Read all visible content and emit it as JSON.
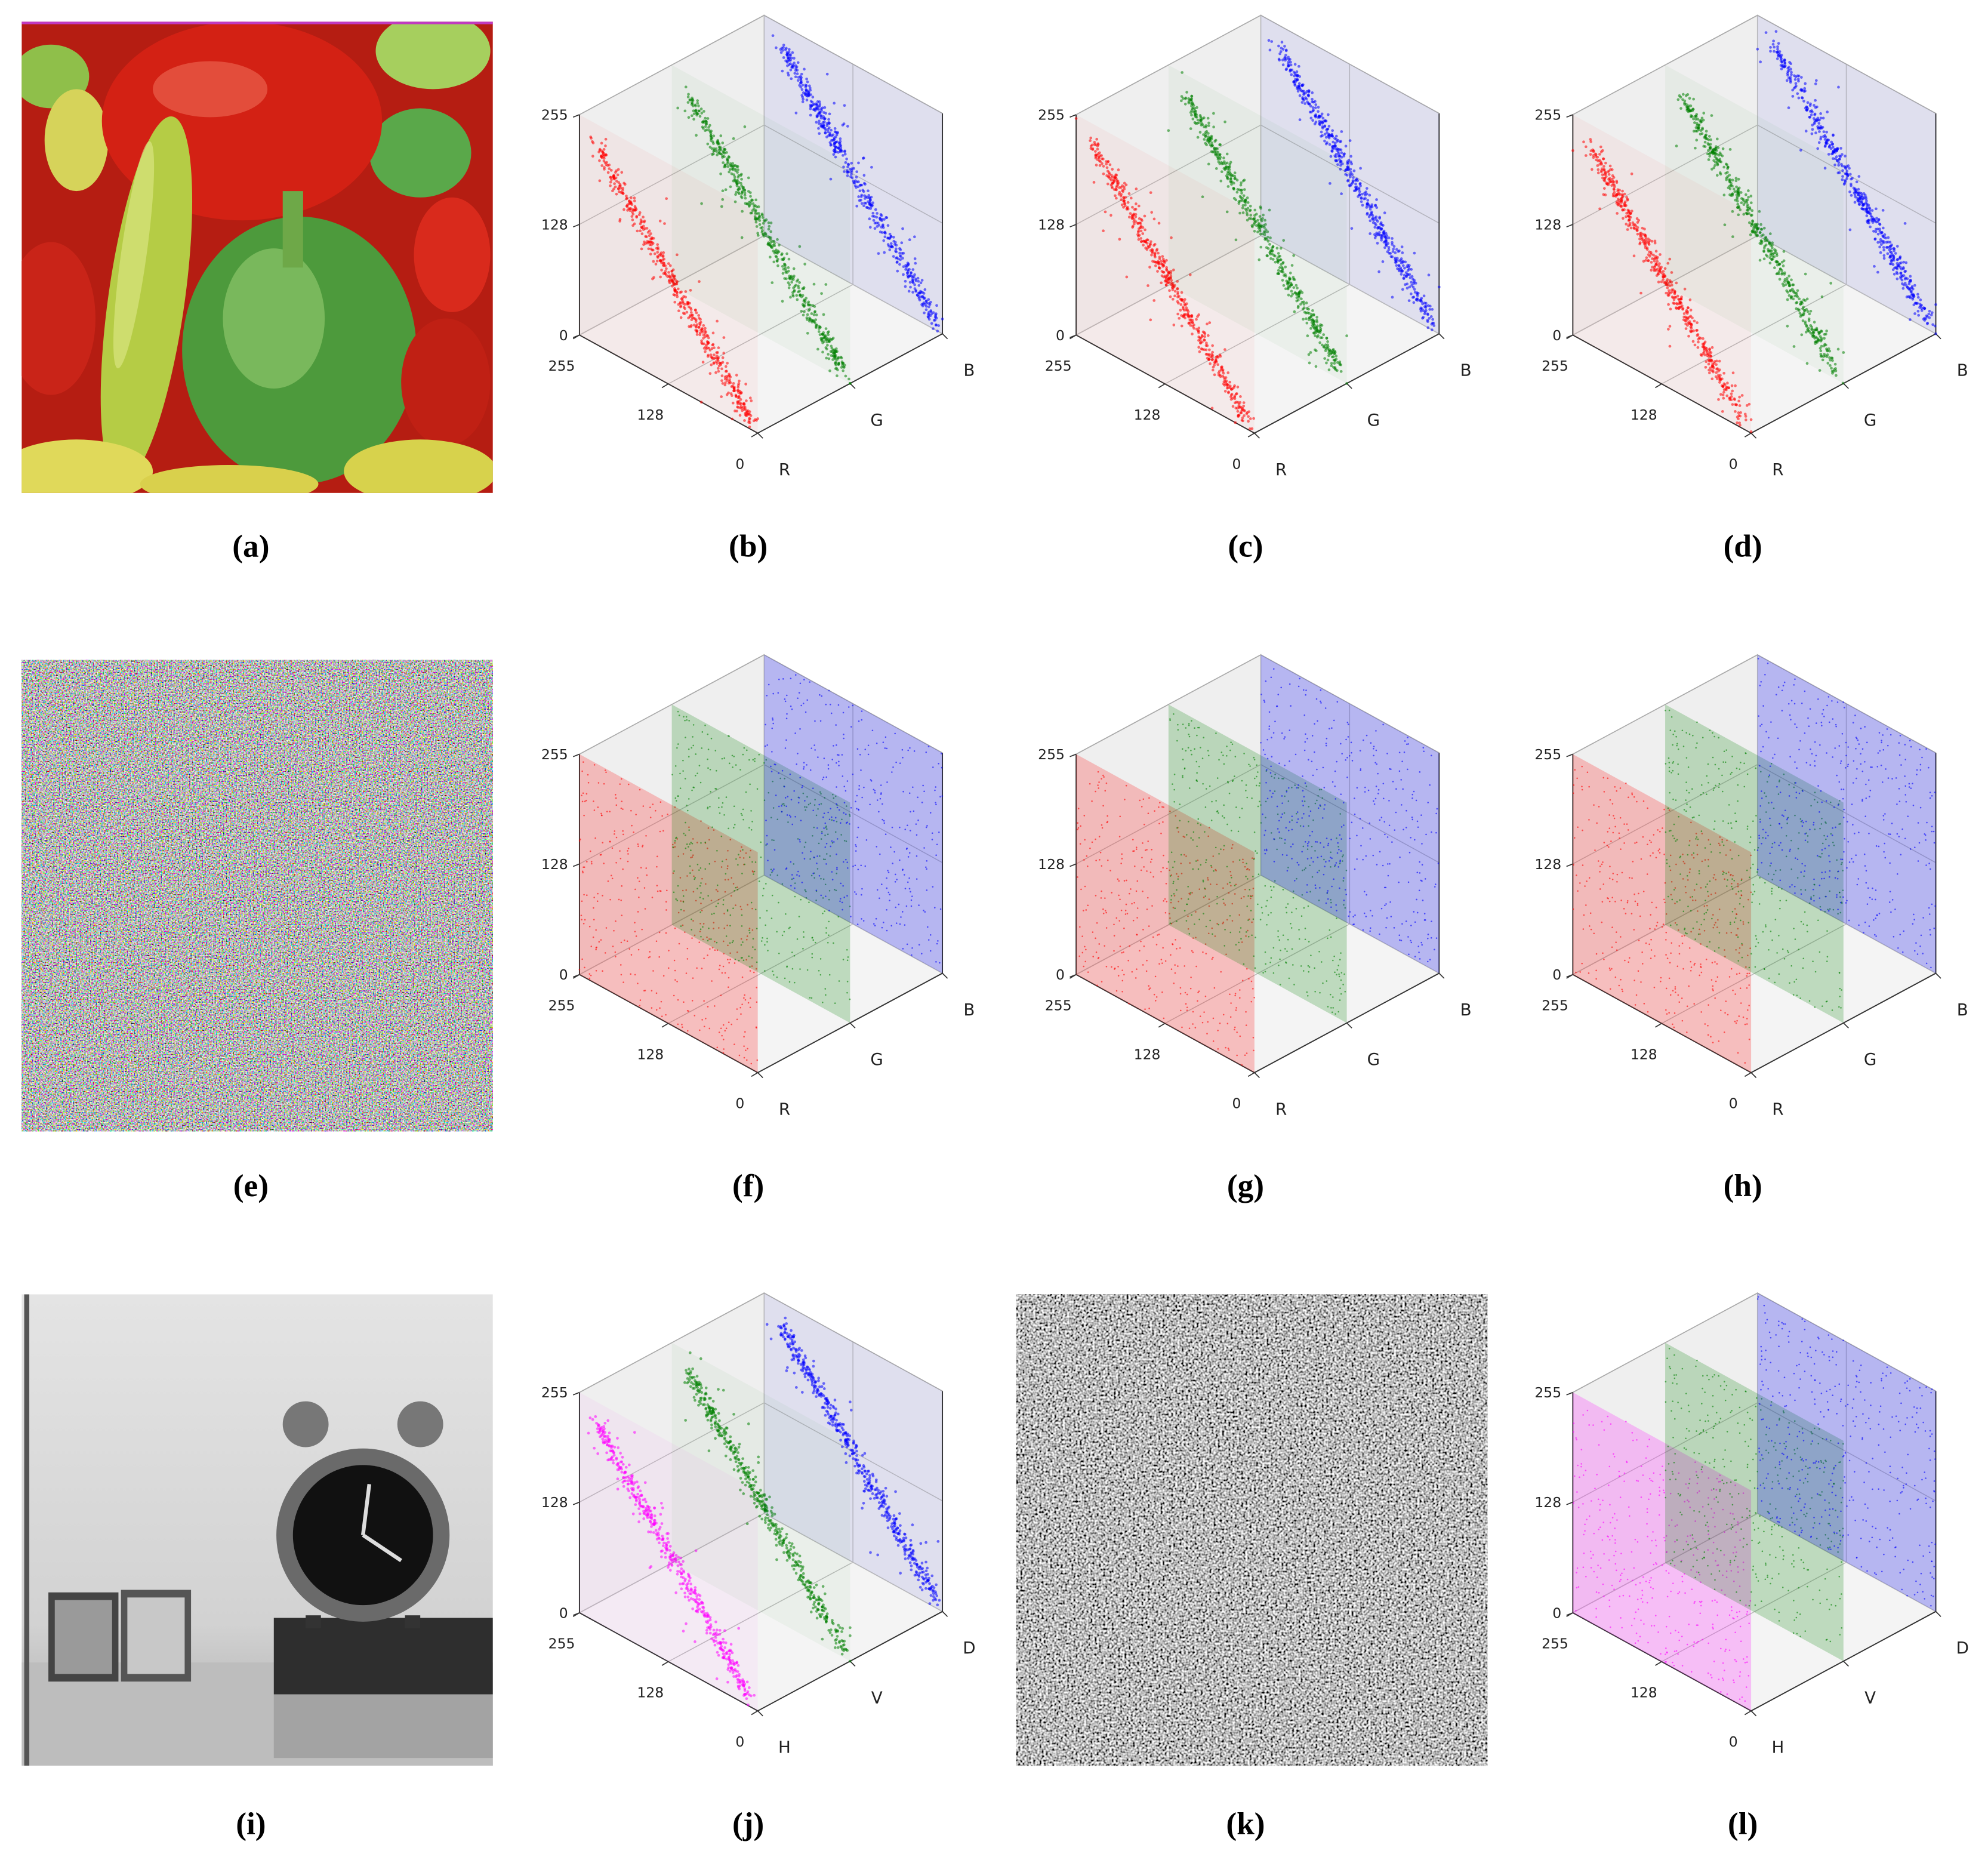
{
  "figure": {
    "panels": [
      {
        "caption": "(a)"
      },
      {
        "caption": "(b)",
        "pattern": "diagonal",
        "axes": [
          "R",
          "G",
          "B"
        ],
        "colors": [
          "#ff0000",
          "#008000",
          "#0000ff"
        ],
        "zlim": [
          0,
          255
        ],
        "zticks": [
          0,
          128,
          255
        ],
        "xlim": [
          255,
          0
        ],
        "xticks": [
          255,
          128,
          0
        ]
      },
      {
        "caption": "(c)",
        "pattern": "diagonal",
        "axes": [
          "R",
          "G",
          "B"
        ],
        "colors": [
          "#ff0000",
          "#008000",
          "#0000ff"
        ],
        "zlim": [
          0,
          255
        ],
        "zticks": [
          0,
          128,
          255
        ],
        "xlim": [
          255,
          0
        ],
        "xticks": [
          255,
          128,
          0
        ]
      },
      {
        "caption": "(d)",
        "pattern": "diagonal",
        "axes": [
          "R",
          "G",
          "B"
        ],
        "colors": [
          "#ff0000",
          "#008000",
          "#0000ff"
        ],
        "zlim": [
          0,
          255
        ],
        "zticks": [
          0,
          128,
          255
        ],
        "xlim": [
          255,
          0
        ],
        "xticks": [
          255,
          128,
          0
        ]
      },
      {
        "caption": "(e)"
      },
      {
        "caption": "(f)",
        "pattern": "uniform",
        "axes": [
          "R",
          "G",
          "B"
        ],
        "colors": [
          "#ff0000",
          "#008000",
          "#0000ff"
        ],
        "zlim": [
          0,
          255
        ],
        "zticks": [
          0,
          128,
          255
        ],
        "xlim": [
          255,
          0
        ],
        "xticks": [
          255,
          128,
          0
        ]
      },
      {
        "caption": "(g)",
        "pattern": "uniform",
        "axes": [
          "R",
          "G",
          "B"
        ],
        "colors": [
          "#ff0000",
          "#008000",
          "#0000ff"
        ],
        "zlim": [
          0,
          255
        ],
        "zticks": [
          0,
          128,
          255
        ],
        "xlim": [
          255,
          0
        ],
        "xticks": [
          255,
          128,
          0
        ]
      },
      {
        "caption": "(h)",
        "pattern": "uniform",
        "axes": [
          "R",
          "G",
          "B"
        ],
        "colors": [
          "#ff0000",
          "#008000",
          "#0000ff"
        ],
        "zlim": [
          0,
          255
        ],
        "zticks": [
          0,
          128,
          255
        ],
        "xlim": [
          255,
          0
        ],
        "xticks": [
          255,
          128,
          0
        ]
      },
      {
        "caption": "(i)"
      },
      {
        "caption": "(j)",
        "pattern": "diagonal",
        "axes": [
          "H",
          "V",
          "D"
        ],
        "colors": [
          "#ff00ff",
          "#008000",
          "#0000ff"
        ],
        "zlim": [
          0,
          255
        ],
        "zticks": [
          0,
          128,
          255
        ],
        "xlim": [
          255,
          0
        ],
        "xticks": [
          255,
          128,
          0
        ]
      },
      {
        "caption": "(k)"
      },
      {
        "caption": "(l)",
        "pattern": "uniform",
        "axes": [
          "H",
          "V",
          "D"
        ],
        "colors": [
          "#ff00ff",
          "#008000",
          "#0000ff"
        ],
        "zlim": [
          0,
          255
        ],
        "zticks": [
          0,
          128,
          255
        ],
        "xlim": [
          255,
          0
        ],
        "xticks": [
          255,
          128,
          0
        ]
      }
    ]
  }
}
